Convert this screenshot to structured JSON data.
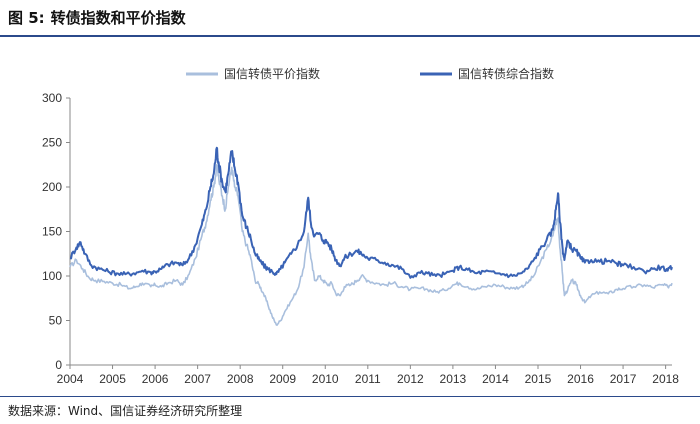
{
  "figure": {
    "label": "图 5:",
    "title": "转债指数和平价指数",
    "source": "数据来源：Wind、国信证券经济研究所整理"
  },
  "colors": {
    "parity": "#a9bfdd",
    "composite": "#3a63b5",
    "axis": "#888888",
    "rule": "#2b4a8b"
  },
  "chart_data": {
    "type": "line",
    "title": "",
    "xlabel": "",
    "ylabel": "",
    "ylim": [
      0,
      300
    ],
    "yticks": [
      0,
      50,
      100,
      150,
      200,
      250,
      300
    ],
    "xlim": [
      2004,
      2018.15
    ],
    "xticks": [
      "2004",
      "2005",
      "2006",
      "2007",
      "2008",
      "2009",
      "2010",
      "2011",
      "2012",
      "2013",
      "2014",
      "2015",
      "2016",
      "2017",
      "2018"
    ],
    "grid": false,
    "legend_position": "top",
    "series": [
      {
        "name": "国信转债平价指数",
        "color": "#a9bfdd",
        "points": [
          [
            2004.0,
            110
          ],
          [
            2004.15,
            118
          ],
          [
            2004.3,
            108
          ],
          [
            2004.45,
            98
          ],
          [
            2004.6,
            95
          ],
          [
            2004.8,
            94
          ],
          [
            2005.0,
            92
          ],
          [
            2005.2,
            90
          ],
          [
            2005.4,
            86
          ],
          [
            2005.55,
            88
          ],
          [
            2005.7,
            92
          ],
          [
            2005.9,
            88
          ],
          [
            2006.0,
            90
          ],
          [
            2006.15,
            88
          ],
          [
            2006.3,
            92
          ],
          [
            2006.5,
            95
          ],
          [
            2006.65,
            90
          ],
          [
            2006.8,
            102
          ],
          [
            2006.95,
            120
          ],
          [
            2007.1,
            145
          ],
          [
            2007.2,
            160
          ],
          [
            2007.3,
            185
          ],
          [
            2007.38,
            200
          ],
          [
            2007.45,
            225
          ],
          [
            2007.5,
            208
          ],
          [
            2007.58,
            190
          ],
          [
            2007.65,
            175
          ],
          [
            2007.72,
            200
          ],
          [
            2007.8,
            222
          ],
          [
            2007.87,
            200
          ],
          [
            2007.95,
            190
          ],
          [
            2008.05,
            150
          ],
          [
            2008.15,
            135
          ],
          [
            2008.25,
            120
          ],
          [
            2008.35,
            95
          ],
          [
            2008.45,
            90
          ],
          [
            2008.55,
            80
          ],
          [
            2008.65,
            68
          ],
          [
            2008.75,
            55
          ],
          [
            2008.85,
            45
          ],
          [
            2008.95,
            50
          ],
          [
            2009.05,
            60
          ],
          [
            2009.2,
            72
          ],
          [
            2009.35,
            85
          ],
          [
            2009.5,
            110
          ],
          [
            2009.6,
            148
          ],
          [
            2009.66,
            120
          ],
          [
            2009.75,
            95
          ],
          [
            2009.85,
            100
          ],
          [
            2009.95,
            95
          ],
          [
            2010.05,
            90
          ],
          [
            2010.15,
            92
          ],
          [
            2010.25,
            80
          ],
          [
            2010.35,
            78
          ],
          [
            2010.45,
            88
          ],
          [
            2010.6,
            90
          ],
          [
            2010.75,
            95
          ],
          [
            2010.85,
            100
          ],
          [
            2011.0,
            95
          ],
          [
            2011.2,
            92
          ],
          [
            2011.4,
            90
          ],
          [
            2011.6,
            92
          ],
          [
            2011.8,
            88
          ],
          [
            2012.0,
            85
          ],
          [
            2012.2,
            86
          ],
          [
            2012.4,
            85
          ],
          [
            2012.6,
            82
          ],
          [
            2012.8,
            84
          ],
          [
            2013.0,
            90
          ],
          [
            2013.15,
            92
          ],
          [
            2013.35,
            88
          ],
          [
            2013.55,
            85
          ],
          [
            2013.75,
            88
          ],
          [
            2014.0,
            90
          ],
          [
            2014.2,
            88
          ],
          [
            2014.4,
            86
          ],
          [
            2014.6,
            88
          ],
          [
            2014.75,
            92
          ],
          [
            2014.9,
            100
          ],
          [
            2015.05,
            115
          ],
          [
            2015.2,
            130
          ],
          [
            2015.35,
            145
          ],
          [
            2015.42,
            160
          ],
          [
            2015.47,
            165
          ],
          [
            2015.52,
            130
          ],
          [
            2015.58,
            100
          ],
          [
            2015.62,
            78
          ],
          [
            2015.7,
            85
          ],
          [
            2015.8,
            95
          ],
          [
            2015.9,
            90
          ],
          [
            2016.0,
            78
          ],
          [
            2016.1,
            70
          ],
          [
            2016.25,
            78
          ],
          [
            2016.45,
            82
          ],
          [
            2016.65,
            80
          ],
          [
            2016.85,
            85
          ],
          [
            2017.0,
            86
          ],
          [
            2017.25,
            88
          ],
          [
            2017.5,
            90
          ],
          [
            2017.7,
            87
          ],
          [
            2017.9,
            90
          ],
          [
            2018.05,
            88
          ],
          [
            2018.15,
            92
          ]
        ]
      },
      {
        "name": "国信转债综合指数",
        "color": "#3a63b5",
        "points": [
          [
            2004.0,
            120
          ],
          [
            2004.15,
            132
          ],
          [
            2004.25,
            138
          ],
          [
            2004.35,
            125
          ],
          [
            2004.5,
            112
          ],
          [
            2004.7,
            108
          ],
          [
            2004.9,
            105
          ],
          [
            2005.1,
            103
          ],
          [
            2005.3,
            102
          ],
          [
            2005.5,
            103
          ],
          [
            2005.7,
            106
          ],
          [
            2005.9,
            104
          ],
          [
            2006.0,
            105
          ],
          [
            2006.15,
            108
          ],
          [
            2006.3,
            113
          ],
          [
            2006.5,
            115
          ],
          [
            2006.65,
            112
          ],
          [
            2006.8,
            120
          ],
          [
            2006.95,
            135
          ],
          [
            2007.1,
            158
          ],
          [
            2007.2,
            175
          ],
          [
            2007.3,
            200
          ],
          [
            2007.38,
            215
          ],
          [
            2007.45,
            244
          ],
          [
            2007.5,
            225
          ],
          [
            2007.58,
            205
          ],
          [
            2007.65,
            195
          ],
          [
            2007.72,
            215
          ],
          [
            2007.8,
            240
          ],
          [
            2007.87,
            222
          ],
          [
            2007.95,
            205
          ],
          [
            2008.05,
            168
          ],
          [
            2008.15,
            155
          ],
          [
            2008.25,
            142
          ],
          [
            2008.35,
            125
          ],
          [
            2008.45,
            118
          ],
          [
            2008.55,
            112
          ],
          [
            2008.65,
            108
          ],
          [
            2008.75,
            105
          ],
          [
            2008.85,
            102
          ],
          [
            2008.95,
            108
          ],
          [
            2009.05,
            115
          ],
          [
            2009.2,
            125
          ],
          [
            2009.35,
            135
          ],
          [
            2009.5,
            150
          ],
          [
            2009.6,
            188
          ],
          [
            2009.66,
            160
          ],
          [
            2009.75,
            145
          ],
          [
            2009.85,
            148
          ],
          [
            2009.95,
            140
          ],
          [
            2010.05,
            138
          ],
          [
            2010.15,
            130
          ],
          [
            2010.25,
            118
          ],
          [
            2010.35,
            112
          ],
          [
            2010.45,
            120
          ],
          [
            2010.6,
            125
          ],
          [
            2010.75,
            128
          ],
          [
            2010.85,
            125
          ],
          [
            2011.0,
            120
          ],
          [
            2011.2,
            118
          ],
          [
            2011.4,
            115
          ],
          [
            2011.6,
            112
          ],
          [
            2011.8,
            108
          ],
          [
            2012.0,
            98
          ],
          [
            2012.2,
            104
          ],
          [
            2012.4,
            103
          ],
          [
            2012.6,
            100
          ],
          [
            2012.8,
            102
          ],
          [
            2013.0,
            106
          ],
          [
            2013.15,
            110
          ],
          [
            2013.35,
            107
          ],
          [
            2013.55,
            103
          ],
          [
            2013.75,
            105
          ],
          [
            2014.0,
            103
          ],
          [
            2014.2,
            102
          ],
          [
            2014.4,
            100
          ],
          [
            2014.6,
            103
          ],
          [
            2014.75,
            108
          ],
          [
            2014.9,
            118
          ],
          [
            2015.05,
            130
          ],
          [
            2015.2,
            140
          ],
          [
            2015.35,
            152
          ],
          [
            2015.42,
            175
          ],
          [
            2015.47,
            193
          ],
          [
            2015.52,
            160
          ],
          [
            2015.58,
            130
          ],
          [
            2015.62,
            118
          ],
          [
            2015.7,
            140
          ],
          [
            2015.8,
            130
          ],
          [
            2015.9,
            128
          ],
          [
            2016.0,
            120
          ],
          [
            2016.1,
            115
          ],
          [
            2016.25,
            118
          ],
          [
            2016.45,
            116
          ],
          [
            2016.65,
            117
          ],
          [
            2016.85,
            114
          ],
          [
            2017.0,
            112
          ],
          [
            2017.25,
            110
          ],
          [
            2017.5,
            105
          ],
          [
            2017.7,
            108
          ],
          [
            2017.9,
            110
          ],
          [
            2018.05,
            106
          ],
          [
            2018.15,
            110
          ]
        ]
      }
    ]
  }
}
